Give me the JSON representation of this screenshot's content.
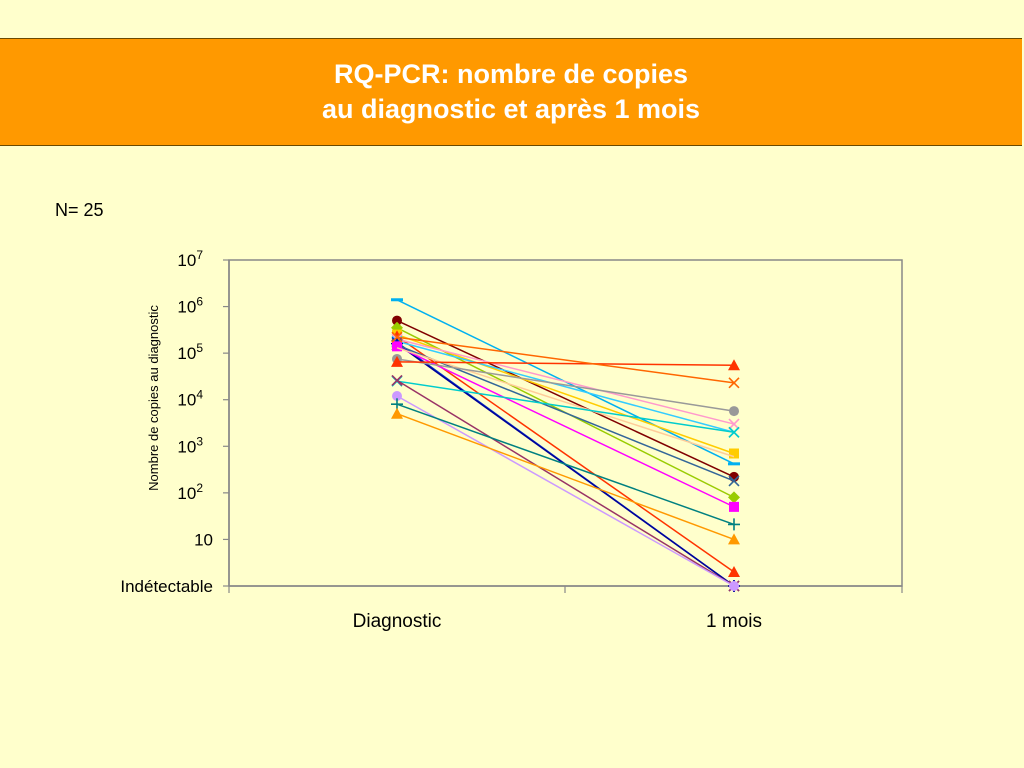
{
  "title": {
    "line1": "RQ-PCR: nombre de copies",
    "line2": "au diagnostic et après 1 mois"
  },
  "n_label": "N= 25",
  "chart_data": {
    "type": "line",
    "y_scale": "log10",
    "ylabel": "Nombre de copies au diagnostic",
    "categories": [
      "Diagnostic",
      "1 mois"
    ],
    "y_ticks": [
      {
        "exp": 7,
        "base": "10",
        "sup": "7"
      },
      {
        "exp": 6,
        "base": "10",
        "sup": "6"
      },
      {
        "exp": 5,
        "base": "10",
        "sup": "5"
      },
      {
        "exp": 4,
        "base": "10",
        "sup": "4"
      },
      {
        "exp": 3,
        "base": "10",
        "sup": "3"
      },
      {
        "exp": 2,
        "base": "10",
        "sup": "2"
      },
      {
        "exp": 1,
        "base": "10",
        "sup": ""
      },
      {
        "exp": 0,
        "base": "Indétectable",
        "sup": ""
      }
    ],
    "ylim_exp": [
      0,
      7
    ],
    "grid": false,
    "series": [
      {
        "values": [
          1400000,
          420
        ],
        "color": "#00b0f0",
        "marker": "dash"
      },
      {
        "values": [
          500000,
          220
        ],
        "color": "#800000",
        "marker": "circle"
      },
      {
        "values": [
          350000,
          80
        ],
        "color": "#99cc00",
        "marker": "diamond"
      },
      {
        "values": [
          250000,
          700
        ],
        "color": "#ffcc00",
        "marker": "square"
      },
      {
        "values": [
          230000,
          2
        ],
        "color": "#ff3300",
        "marker": "triangle"
      },
      {
        "values": [
          200000,
          3000
        ],
        "color": "#ff99cc",
        "marker": "x"
      },
      {
        "values": [
          180000,
          2000
        ],
        "color": "#33ccff",
        "marker": "x"
      },
      {
        "values": [
          170000,
          1
        ],
        "color": "#0033cc",
        "marker": "star"
      },
      {
        "values": [
          160000,
          1
        ],
        "color": "#000099",
        "marker": "plus"
      },
      {
        "values": [
          150000,
          180
        ],
        "color": "#336699",
        "marker": "x"
      },
      {
        "values": [
          140000,
          50
        ],
        "color": "#ff00ff",
        "marker": "square"
      },
      {
        "values": [
          130000,
          600
        ],
        "color": "#ffcc99",
        "marker": "none"
      },
      {
        "values": [
          75000,
          5700
        ],
        "color": "#999999",
        "marker": "circle"
      },
      {
        "values": [
          65000,
          55000
        ],
        "color": "#ff3300",
        "marker": "triangle"
      },
      {
        "values": [
          220000,
          23000
        ],
        "color": "#ff6600",
        "marker": "x"
      },
      {
        "values": [
          25000,
          2000
        ],
        "color": "#00cccc",
        "marker": "x"
      },
      {
        "values": [
          26000,
          1
        ],
        "color": "#993366",
        "marker": "x"
      },
      {
        "values": [
          12000,
          1
        ],
        "color": "#cc99ff",
        "marker": "circle"
      },
      {
        "values": [
          8000,
          21
        ],
        "color": "#008080",
        "marker": "plus"
      },
      {
        "values": [
          5000,
          10
        ],
        "color": "#ff9900",
        "marker": "triangle"
      }
    ]
  }
}
